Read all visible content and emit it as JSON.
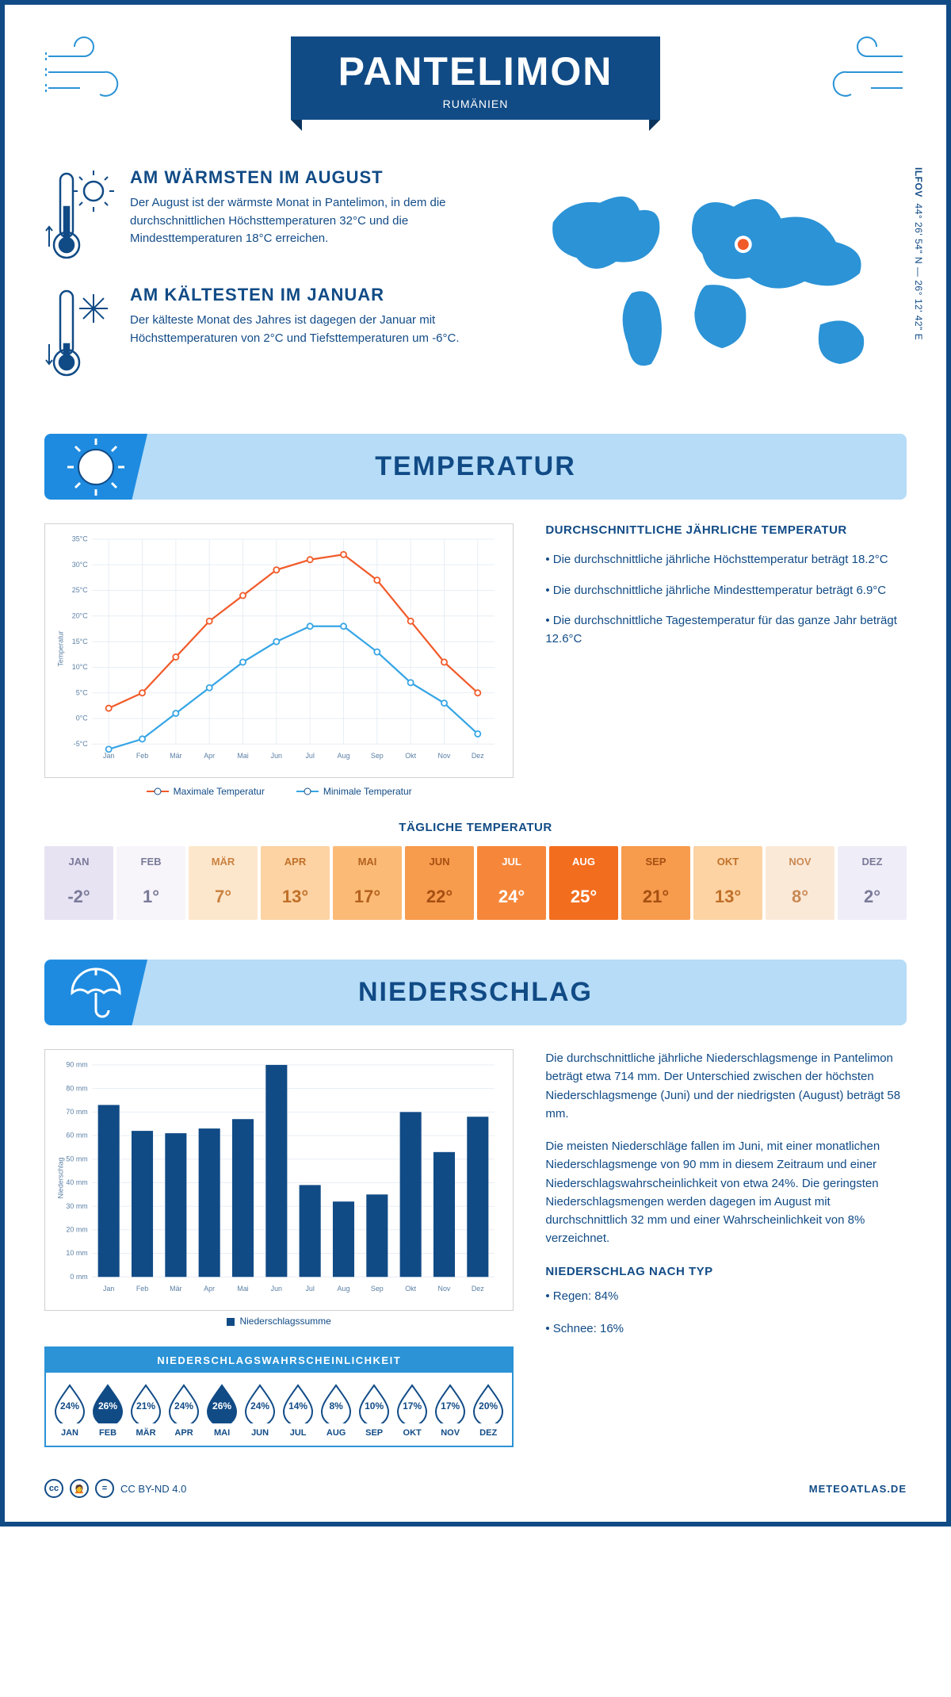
{
  "header": {
    "city": "PANTELIMON",
    "country": "RUMÄNIEN",
    "coords": "44° 26' 54\" N — 26° 12' 42\" E",
    "region": "ILFOV"
  },
  "colors": {
    "primary": "#114b86",
    "banner_bg": "#b6dcf7",
    "banner_icon_bg": "#1e8be0",
    "accent_blue": "#2b93d6",
    "max_line": "#f15a29",
    "min_line": "#36a5e5",
    "bar_fill": "#114b86",
    "grid": "#e5ecf3"
  },
  "warm": {
    "title": "AM WÄRMSTEN IM AUGUST",
    "body": "Der August ist der wärmste Monat in Pantelimon, in dem die durchschnittlichen Höchsttemperaturen 32°C und die Mindesttemperaturen 18°C erreichen."
  },
  "cold": {
    "title": "AM KÄLTESTEN IM JANUAR",
    "body": "Der kälteste Monat des Jahres ist dagegen der Januar mit Höchsttemperaturen von 2°C und Tiefsttemperaturen um -6°C."
  },
  "temp_section": {
    "title": "TEMPERATUR",
    "months": [
      "Jan",
      "Feb",
      "Mär",
      "Apr",
      "Mai",
      "Jun",
      "Jul",
      "Aug",
      "Sep",
      "Okt",
      "Nov",
      "Dez"
    ],
    "months_caps": [
      "JAN",
      "FEB",
      "MÄR",
      "APR",
      "MAI",
      "JUN",
      "JUL",
      "AUG",
      "SEP",
      "OKT",
      "NOV",
      "DEZ"
    ],
    "max_vals": [
      2,
      5,
      12,
      19,
      24,
      29,
      31,
      32,
      27,
      19,
      11,
      5
    ],
    "min_vals": [
      -6,
      -4,
      1,
      6,
      11,
      15,
      18,
      18,
      13,
      7,
      3,
      -3
    ],
    "y_ticks": [
      -5,
      0,
      5,
      10,
      15,
      20,
      25,
      30,
      35
    ],
    "y_labels": [
      "-5°C",
      "0°C",
      "5°C",
      "10°C",
      "15°C",
      "20°C",
      "25°C",
      "30°C",
      "35°C"
    ],
    "ylabel": "Temperatur",
    "legend_max": "Maximale Temperatur",
    "legend_min": "Minimale Temperatur",
    "side_title": "DURCHSCHNITTLICHE JÄHRLICHE TEMPERATUR",
    "side_bullets": [
      "• Die durchschnittliche jährliche Höchsttemperatur beträgt 18.2°C",
      "• Die durchschnittliche jährliche Mindesttemperatur beträgt 6.9°C",
      "• Die durchschnittliche Tagestemperatur für das ganze Jahr beträgt 12.6°C"
    ],
    "daily_title": "TÄGLICHE TEMPERATUR",
    "daily_vals": [
      "-2°",
      "1°",
      "7°",
      "13°",
      "17°",
      "22°",
      "24°",
      "25°",
      "21°",
      "13°",
      "8°",
      "2°"
    ],
    "daily_bg": [
      "#e7e3f3",
      "#f7f5fa",
      "#fde7cc",
      "#fdd3a4",
      "#fbbb77",
      "#f79b4d",
      "#f6873a",
      "#f36d1e",
      "#f79b4d",
      "#fdd3a4",
      "#fbe9d8",
      "#efedf7"
    ],
    "daily_text": [
      "#7a7a99",
      "#7a7a99",
      "#c98242",
      "#c07028",
      "#b4611f",
      "#a54f12",
      "#ffffff",
      "#ffffff",
      "#a54f12",
      "#c07028",
      "#c98a55",
      "#7a7a99"
    ]
  },
  "precip_section": {
    "title": "NIEDERSCHLAG",
    "months": [
      "Jan",
      "Feb",
      "Mär",
      "Apr",
      "Mai",
      "Jun",
      "Jul",
      "Aug",
      "Sep",
      "Okt",
      "Nov",
      "Dez"
    ],
    "values": [
      73,
      62,
      61,
      63,
      67,
      90,
      39,
      32,
      35,
      70,
      53,
      68
    ],
    "y_ticks": [
      0,
      10,
      20,
      30,
      40,
      50,
      60,
      70,
      80,
      90
    ],
    "y_labels": [
      "0 mm",
      "10 mm",
      "20 mm",
      "30 mm",
      "40 mm",
      "50 mm",
      "60 mm",
      "70 mm",
      "80 mm",
      "90 mm"
    ],
    "ylabel": "Niederschlag",
    "legend": "Niederschlagssumme",
    "text1": "Die durchschnittliche jährliche Niederschlagsmenge in Pantelimon beträgt etwa 714 mm. Der Unterschied zwischen der höchsten Niederschlagsmenge (Juni) und der niedrigsten (August) beträgt 58 mm.",
    "text2": "Die meisten Niederschläge fallen im Juni, mit einer monatlichen Niederschlagsmenge von 90 mm in diesem Zeitraum und einer Niederschlagswahrscheinlichkeit von etwa 24%. Die geringsten Niederschlagsmengen werden dagegen im August mit durchschnittlich 32 mm und einer Wahrscheinlichkeit von 8% verzeichnet.",
    "type_title": "NIEDERSCHLAG NACH TYP",
    "type_items": [
      "• Regen: 84%",
      "• Schnee: 16%"
    ],
    "prob_title": "NIEDERSCHLAGSWAHRSCHEINLICHKEIT",
    "probs": [
      24,
      26,
      21,
      24,
      26,
      24,
      14,
      8,
      10,
      17,
      17,
      20
    ],
    "prob_max": 26
  },
  "footer": {
    "cc": "CC BY-ND 4.0",
    "site": "METEOATLAS.DE"
  }
}
